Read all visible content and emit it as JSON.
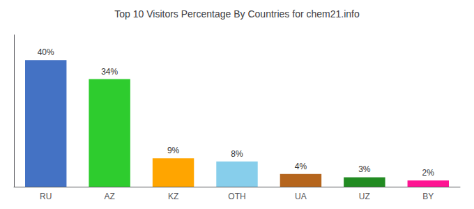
{
  "chart_data": {
    "type": "bar",
    "title": "Top 10 Visitors Percentage By Countries for chem21.info",
    "categories": [
      "RU",
      "AZ",
      "KZ",
      "OTH",
      "UA",
      "UZ",
      "BY"
    ],
    "values": [
      40,
      34,
      9,
      8,
      4,
      3,
      2
    ],
    "value_labels": [
      "40%",
      "34%",
      "9%",
      "8%",
      "4%",
      "3%",
      "2%"
    ],
    "colors": [
      "#4472c4",
      "#2ecc2e",
      "#ffa500",
      "#87ceeb",
      "#b5651d",
      "#228b22",
      "#ff1493"
    ],
    "ylim": [
      0,
      48
    ],
    "grid": false,
    "data_labels": true,
    "tick_labels": "x"
  }
}
